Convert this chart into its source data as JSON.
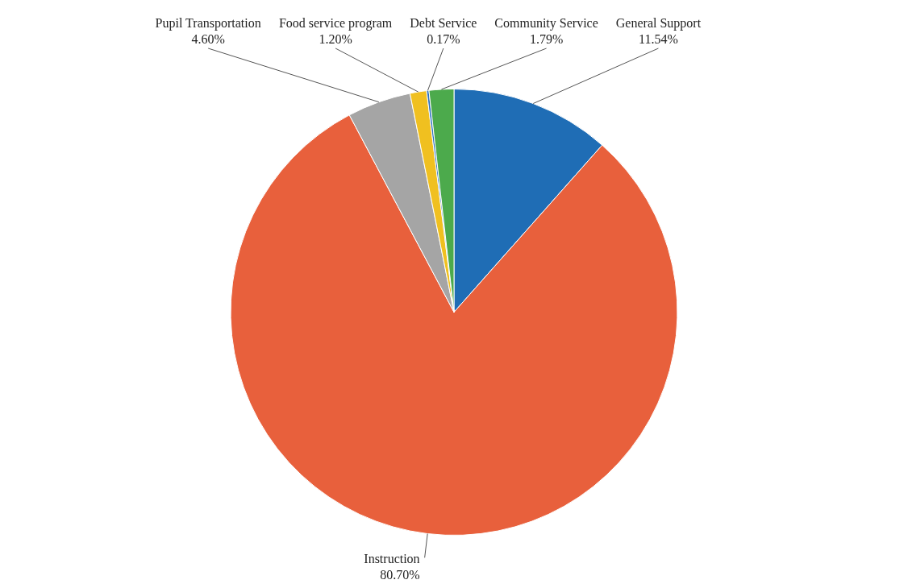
{
  "chart_data": {
    "type": "pie",
    "categories": [
      "General Support",
      "Instruction",
      "Pupil Transportation",
      "Food service program",
      "Debt Service",
      "Community Service"
    ],
    "values": [
      11.54,
      80.7,
      4.6,
      1.2,
      0.17,
      1.79
    ],
    "colors": [
      "#1f6db5",
      "#e8603c",
      "#a5a5a5",
      "#f0c020",
      "#2a6fc0",
      "#4caa4c"
    ],
    "value_labels": [
      "11.54%",
      "80.70%",
      "4.60%",
      "1.20%",
      "0.17%",
      "1.79%"
    ]
  }
}
